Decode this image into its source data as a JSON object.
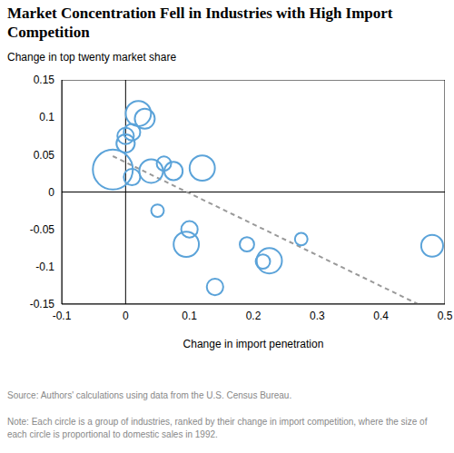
{
  "chart_data": {
    "type": "scatter",
    "title": "Market Concentration Fell in Industries with High Import Competition",
    "y_label": "Change in top twenty market share",
    "x_label": "Change in import penetration",
    "source": "Source: Authors' calculations using data from the U.S. Census Bureau.",
    "note": "Note: Each circle is a group of industries, ranked by their change in import competition, where the size of each circle is proportional to domestic sales in 1992.",
    "x": [
      -0.02,
      0.0,
      0.0,
      0.01,
      0.02,
      0.03,
      0.01,
      0.04,
      0.06,
      0.075,
      0.12,
      0.05,
      0.1,
      0.095,
      0.19,
      0.215,
      0.225,
      0.275,
      0.14,
      0.48
    ],
    "values": [
      0.03,
      0.065,
      0.075,
      0.08,
      0.105,
      0.098,
      0.02,
      0.028,
      0.038,
      0.028,
      0.032,
      -0.025,
      -0.05,
      -0.07,
      -0.07,
      -0.093,
      -0.092,
      -0.063,
      -0.127,
      -0.072
    ],
    "sizes": [
      100,
      21,
      17,
      17,
      40,
      25,
      17,
      35,
      13,
      21,
      40,
      10,
      17,
      40,
      13,
      13,
      40,
      10,
      17,
      30
    ],
    "trend_line": {
      "x": [
        -0.02,
        0.47
      ],
      "values": [
        0.048,
        -0.155
      ]
    },
    "xlim": [
      -0.1,
      0.5
    ],
    "ylim": [
      -0.15,
      0.15
    ],
    "xticks": [
      -0.1,
      0,
      0.1,
      0.2,
      0.3,
      0.4,
      0.5
    ],
    "yticks": [
      -0.15,
      -0.1,
      -0.05,
      0,
      0.05,
      0.1,
      0.15
    ],
    "color": "#5ba3d9",
    "marker": "circle",
    "line_style": "dashed"
  }
}
